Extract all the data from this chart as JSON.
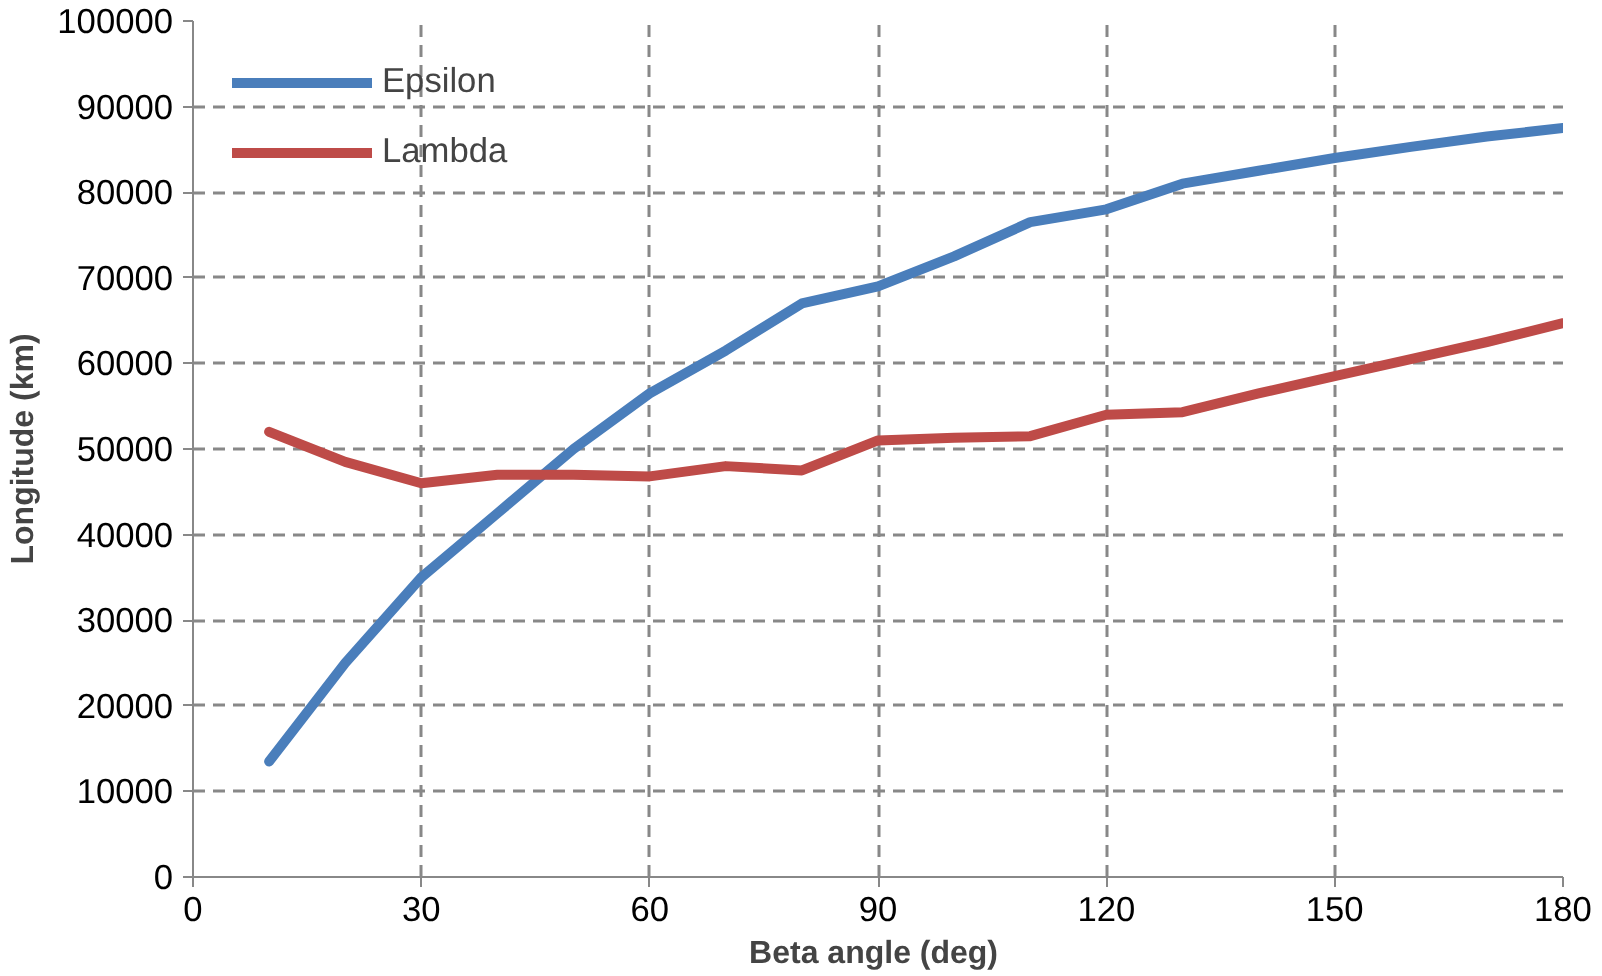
{
  "chart_data": {
    "type": "line",
    "xlabel": "Beta angle  (deg)",
    "ylabel": "Longitude (km)",
    "x": [
      10,
      20,
      30,
      40,
      50,
      60,
      70,
      80,
      90,
      100,
      110,
      120,
      130,
      140,
      150,
      160,
      170,
      180
    ],
    "series": [
      {
        "name": "Epsilon",
        "color": "#4a7ebb",
        "values": [
          13500,
          25000,
          35000,
          42500,
          50000,
          56500,
          61500,
          67000,
          69000,
          72500,
          76500,
          78000,
          81000,
          82500,
          84000,
          85300,
          86500,
          87500
        ]
      },
      {
        "name": "Lambda",
        "color": "#be4b48",
        "values": [
          52000,
          48500,
          46000,
          47000,
          47000,
          46800,
          48000,
          47500,
          51000,
          51300,
          51500,
          54000,
          54300,
          56500,
          58500,
          60500,
          62500,
          64700
        ]
      }
    ],
    "xlim": [
      0,
      180
    ],
    "xticks": [
      0,
      30,
      60,
      90,
      120,
      150,
      180
    ],
    "ylim": [
      0,
      100000
    ],
    "yticks": [
      0,
      10000,
      20000,
      30000,
      40000,
      50000,
      60000,
      70000,
      80000,
      90000,
      100000
    ],
    "grid": true,
    "legend": "top left",
    "marker": "none",
    "line_style": "solid"
  }
}
